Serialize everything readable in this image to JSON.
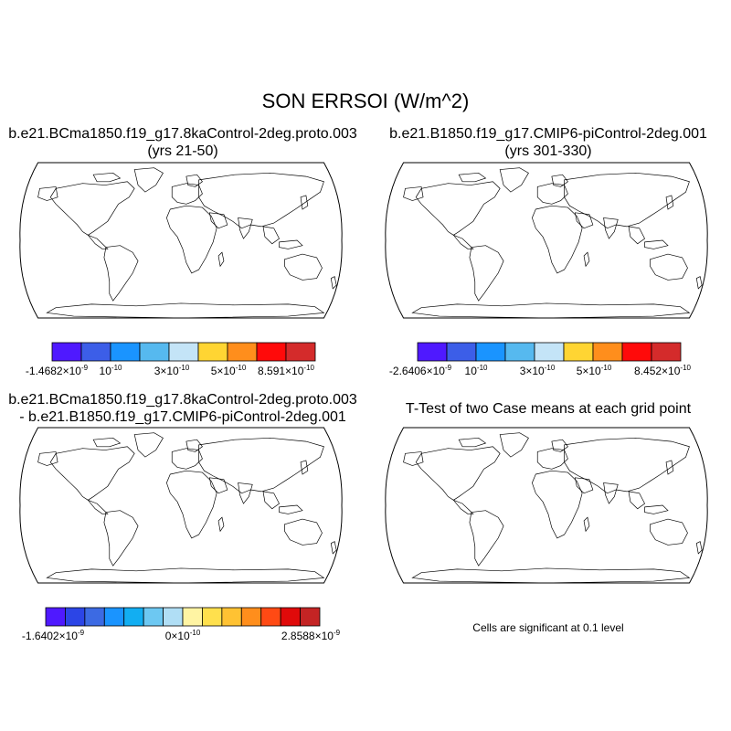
{
  "title": "SON ERRSOI (W/m^2)",
  "panels": [
    {
      "id": "case1",
      "title_line1": "b.e21.BCma1850.f19_g17.8kaControl-2deg.proto.003",
      "title_line2": "(yrs 21-50)",
      "colorbar": {
        "colors": [
          "#4f19ff",
          "#3c5ee8",
          "#1a94ff",
          "#56b9ef",
          "#c4e4f7",
          "#ffd533",
          "#ff8e1c",
          "#ff0a0a",
          "#d42b2b"
        ],
        "labels": [
          {
            "mantissa": "-1.4682×10",
            "exp": "-9"
          },
          {
            "mantissa": "10",
            "exp": "-10"
          },
          {
            "mantissa": "3×10",
            "exp": "-10"
          },
          {
            "mantissa": "5×10",
            "exp": "-10"
          },
          {
            "mantissa": "8.591×10",
            "exp": "-10"
          }
        ]
      }
    },
    {
      "id": "case2",
      "title_line1": "b.e21.B1850.f19_g17.CMIP6-piControl-2deg.001",
      "title_line2": "(yrs 301-330)",
      "colorbar": {
        "colors": [
          "#4f19ff",
          "#3c5ee8",
          "#1a94ff",
          "#56b9ef",
          "#c4e4f7",
          "#ffd533",
          "#ff8e1c",
          "#ff0a0a",
          "#d42b2b"
        ],
        "labels": [
          {
            "mantissa": "-2.6406×10",
            "exp": "-9"
          },
          {
            "mantissa": "10",
            "exp": "-10"
          },
          {
            "mantissa": "3×10",
            "exp": "-10"
          },
          {
            "mantissa": "5×10",
            "exp": "-10"
          },
          {
            "mantissa": "8.452×10",
            "exp": "-10"
          }
        ]
      }
    },
    {
      "id": "diff",
      "title_line1": "b.e21.BCma1850.f19_g17.8kaControl-2deg.proto.003",
      "title_line2": "- b.e21.B1850.f19_g17.CMIP6-piControl-2deg.001",
      "colorbar": {
        "colors": [
          "#4f19ff",
          "#2c45e6",
          "#3c6ae3",
          "#1a94ff",
          "#12aef2",
          "#6dc8f2",
          "#b0def5",
          "#fff4a3",
          "#ffe04d",
          "#ffc233",
          "#ff8e1c",
          "#ff4a14",
          "#e00a0a",
          "#c42424"
        ],
        "labels": [
          {
            "mantissa": "-1.6402×10",
            "exp": "-9"
          },
          {
            "mantissa": "0×10",
            "exp": "-10"
          },
          {
            "mantissa": "2.8588×10",
            "exp": "-9"
          }
        ]
      }
    },
    {
      "id": "ttest",
      "title_line1": "T-Test of two Case means at each grid point",
      "caption": "Cells are significant at 0.1 level"
    }
  ],
  "colors": {
    "ocean": "#ffffff",
    "land_case": "#3a6fe8",
    "land_case_dark": "#2f55d8",
    "land_diff": "#f4f0b4",
    "ice_case": "#d42b2b",
    "sig": "#e60000"
  }
}
